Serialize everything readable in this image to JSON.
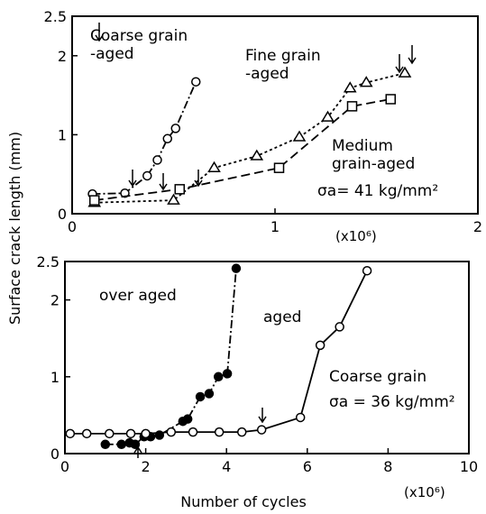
{
  "chart_data": [
    {
      "type": "line",
      "ylabel": "Surface crack length (mm)",
      "x_unit": "(x10⁶)",
      "xlim": [
        0,
        2
      ],
      "ylim": [
        0,
        2.5
      ],
      "xticks": [
        0,
        1,
        2
      ],
      "yticks": [
        0,
        1,
        2,
        2.5
      ],
      "annotations": [
        "σa= 41 kg/mm²"
      ],
      "series": [
        {
          "name": "Coarse grain\n-aged",
          "color": "#000000",
          "marker": "circle",
          "dash": "dashdot",
          "x": [
            0.1,
            0.26,
            0.37,
            0.42,
            0.47,
            0.51,
            0.61
          ],
          "values": [
            0.25,
            0.26,
            0.48,
            0.68,
            0.95,
            1.08,
            1.67
          ]
        },
        {
          "name": "Fine grain\n-aged",
          "color": "#000000",
          "marker": "triangle",
          "dash": "dotted",
          "x": [
            0.11,
            0.5,
            0.7,
            0.91,
            1.12,
            1.26,
            1.37,
            1.45,
            1.64
          ],
          "values": [
            0.14,
            0.17,
            0.58,
            0.73,
            0.97,
            1.22,
            1.59,
            1.66,
            1.78
          ]
        },
        {
          "name": "Medium\ngrain-aged",
          "color": "#000000",
          "marker": "square",
          "dash": "dashed",
          "x": [
            0.11,
            0.53,
            1.02,
            1.38,
            1.57
          ],
          "values": [
            0.17,
            0.31,
            0.58,
            1.36,
            1.45
          ]
        }
      ]
    },
    {
      "type": "line",
      "xlabel": "Number of cycles",
      "x_unit": "(x10⁶)",
      "xlim": [
        0,
        10
      ],
      "ylim": [
        0,
        2.5
      ],
      "xticks": [
        0,
        2,
        4,
        6,
        8,
        10
      ],
      "yticks": [
        0,
        1,
        2,
        2.5
      ],
      "annotations": [
        "Coarse grain",
        "σa = 36 kg/mm²"
      ],
      "series": [
        {
          "name": "over aged",
          "color": "#000000",
          "marker": "filled-circle",
          "dash": "dashdot",
          "x": [
            1.0,
            1.4,
            1.6,
            1.74,
            1.96,
            2.12,
            2.34,
            2.92,
            3.04,
            3.35,
            3.57,
            3.8,
            4.02,
            4.24
          ],
          "values": [
            0.12,
            0.12,
            0.14,
            0.12,
            0.22,
            0.22,
            0.24,
            0.42,
            0.45,
            0.74,
            0.78,
            1.0,
            1.04,
            2.41
          ]
        },
        {
          "name": "aged",
          "color": "#000000",
          "marker": "circle",
          "dash": "solid",
          "x": [
            0.13,
            0.54,
            1.1,
            1.63,
            2.0,
            2.63,
            3.17,
            3.82,
            4.38,
            4.87,
            5.83,
            6.32,
            6.8,
            7.48
          ],
          "values": [
            0.26,
            0.26,
            0.26,
            0.26,
            0.26,
            0.28,
            0.28,
            0.28,
            0.28,
            0.31,
            0.47,
            1.41,
            1.65,
            2.38
          ]
        }
      ]
    }
  ]
}
